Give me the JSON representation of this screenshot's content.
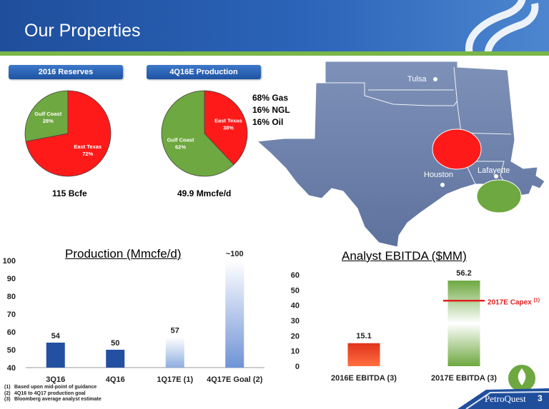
{
  "slide": {
    "title": "Our Properties",
    "page_number": "3",
    "brand": "PetroQuest"
  },
  "reserves": {
    "header": "2016 Reserves",
    "total": "115 Bcfe",
    "slices": [
      {
        "name": "Gulf Coast",
        "value": "28%",
        "color": "#6ea840"
      },
      {
        "name": "East Texas",
        "value": "72%",
        "color": "#ff1a1a"
      }
    ]
  },
  "production_mix": {
    "header": "4Q16E Production",
    "total": "49.9 Mmcfe/d",
    "slices": [
      {
        "name": "East Texas",
        "value": "38%",
        "color": "#ff1a1a"
      },
      {
        "name": "Gulf Coast",
        "value": "62%",
        "color": "#6ea840"
      }
    ],
    "commodity_mix": [
      "68% Gas",
      "16% NGL",
      "16% Oil"
    ]
  },
  "map": {
    "cities": [
      "Tulsa",
      "Houston",
      "Lafayette"
    ],
    "regions": [
      {
        "name": "East Texas",
        "color": "#ff1a1a"
      },
      {
        "name": "Gulf Coast",
        "color": "#6ea840"
      }
    ]
  },
  "chart_data": [
    {
      "type": "pie",
      "title": "2016 Reserves",
      "labels": [
        "Gulf Coast",
        "East Texas"
      ],
      "values": [
        28,
        72
      ],
      "unit": "%"
    },
    {
      "type": "pie",
      "title": "4Q16E Production",
      "labels": [
        "East Texas",
        "Gulf Coast"
      ],
      "values": [
        38,
        62
      ],
      "unit": "%"
    },
    {
      "type": "bar",
      "title": "Production (Mmcfe/d)",
      "categories": [
        "3Q16",
        "4Q16",
        "1Q17E (1)",
        "4Q17E Goal (2)"
      ],
      "values": [
        54,
        50,
        57,
        100
      ],
      "data_labels": [
        "54",
        "50",
        "57",
        "~100"
      ],
      "ylim": [
        40,
        100
      ],
      "yticks": [
        "40",
        "50",
        "60",
        "70",
        "80",
        "90",
        "100"
      ],
      "colors": [
        "#2350a0",
        "#2350a0",
        "#8eaee0",
        "#6f93d6"
      ]
    },
    {
      "type": "bar",
      "title": "Analyst EBITDA ($MM)",
      "categories": [
        "2016E EBITDA (3)",
        "2017E EBITDA (3)"
      ],
      "values": [
        15.1,
        56.2
      ],
      "data_labels": [
        "15.1",
        "56.2"
      ],
      "ylim": [
        0,
        60
      ],
      "yticks": [
        "0",
        "10",
        "20",
        "30",
        "40",
        "50",
        "60"
      ],
      "colors": [
        "#e0321a",
        "#6ea840"
      ],
      "reference_line": {
        "label": "2017E Capex",
        "note": "(1)",
        "value": 43,
        "color": "#e02020"
      }
    }
  ],
  "footnotes": [
    {
      "n": "(1)",
      "text": "Based upon mid-point of guidance"
    },
    {
      "n": "(2)",
      "text": "4Q16 to 4Q17 production goal"
    },
    {
      "n": "(3)",
      "text": "Bloomberg average analyst estimate"
    }
  ]
}
